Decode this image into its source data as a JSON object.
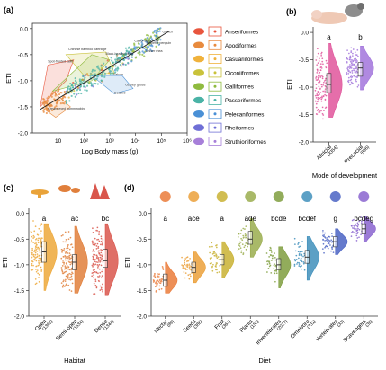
{
  "panels": {
    "a": "(a)",
    "b": "(b)",
    "c": "(c)",
    "d": "(d)"
  },
  "chart_data": [
    {
      "id": "a",
      "type": "scatter",
      "xlabel": "Log Body mass (g)",
      "ylabel": "ETI",
      "xscale": "log",
      "xlim": [
        1,
        1000000
      ],
      "ylim": [
        -2.0,
        0.1
      ],
      "xticks": [
        "10",
        "10²",
        "10³",
        "10⁴",
        "10⁵",
        "10⁶"
      ],
      "yticks": [
        "0.0",
        "-0.5",
        "-1.0",
        "-1.5",
        "-2.0"
      ],
      "legend_position": "right",
      "legend": [
        {
          "name": "Anseriformes",
          "color": "#e8553d"
        },
        {
          "name": "Apodiformes",
          "color": "#e88a3d"
        },
        {
          "name": "Casuariiformes",
          "color": "#f0b23c"
        },
        {
          "name": "Ciconiiformes",
          "color": "#c9c23a"
        },
        {
          "name": "Galliformes",
          "color": "#8fbb3f"
        },
        {
          "name": "Passeriformes",
          "color": "#4ab3a6"
        },
        {
          "name": "Pelecaniformes",
          "color": "#4a90d6"
        },
        {
          "name": "Rheiformes",
          "color": "#6f6fd6"
        },
        {
          "name": "Struthioniformes",
          "color": "#a77fd9"
        }
      ],
      "annotations": [
        {
          "text": "Black-headed duck",
          "x": 700,
          "y": -0.5
        },
        {
          "text": "California condor",
          "x": 9000,
          "y": -0.25
        },
        {
          "text": "Emperor penguin",
          "x": 26000,
          "y": -0.3
        },
        {
          "text": "Lesser rhea",
          "x": 24000,
          "y": -0.45
        },
        {
          "text": "Ostrich",
          "x": 110000,
          "y": -0.08
        },
        {
          "text": "Chinese bamboo partridge",
          "x": 25,
          "y": -0.42
        },
        {
          "text": "Spot-fronted swift",
          "x": 4,
          "y": -0.65
        },
        {
          "text": "Cream-eyed hummingbird",
          "x": 4,
          "y": -1.55
        },
        {
          "text": "Falcon",
          "x": 1400,
          "y": -0.9
        },
        {
          "text": "Osprey goose",
          "x": 4000,
          "y": -1.1
        },
        {
          "text": "Seabird",
          "x": 1500,
          "y": -1.25
        }
      ],
      "trend": [
        [
          2,
          -1.55
        ],
        [
          200000,
          -0.05
        ]
      ]
    },
    {
      "id": "b",
      "type": "raincloud",
      "xlabel": "Mode of development",
      "ylabel": "ETI",
      "ylim": [
        -2.0,
        0.1
      ],
      "yticks": [
        "0.0",
        "-0.5",
        "-1.0",
        "-1.5",
        "-2.0"
      ],
      "categories": [
        {
          "name": "Altricial",
          "n": "(3354)",
          "median": -0.95,
          "q1": -1.1,
          "q3": -0.75,
          "min": -1.55,
          "max": -0.2,
          "color": "#e0559b",
          "letter": "a"
        },
        {
          "name": "Precocial",
          "n": "(896)",
          "median": -0.65,
          "q1": -0.8,
          "q3": -0.55,
          "min": -1.05,
          "max": -0.25,
          "color": "#a274dc",
          "letter": "b"
        }
      ]
    },
    {
      "id": "c",
      "type": "raincloud",
      "xlabel": "Habitat",
      "ylabel": "ETI",
      "ylim": [
        -2.0,
        0.1
      ],
      "yticks": [
        "0.0",
        "-0.5",
        "-1.0",
        "-1.5",
        "-2.0"
      ],
      "categories": [
        {
          "name": "Open",
          "n": "(1362)",
          "median": -0.75,
          "q1": -0.95,
          "q3": -0.55,
          "min": -1.5,
          "max": -0.2,
          "color": "#eda83a",
          "letter": "a"
        },
        {
          "name": "Semi-open",
          "n": "(1534)",
          "median": -0.95,
          "q1": -1.1,
          "q3": -0.8,
          "min": -1.55,
          "max": -0.25,
          "color": "#e07f3b",
          "letter": "ac"
        },
        {
          "name": "Dense",
          "n": "(1344)",
          "median": -0.92,
          "q1": -1.05,
          "q3": -0.7,
          "min": -1.6,
          "max": -0.2,
          "color": "#d9564c",
          "letter": "bc"
        }
      ]
    },
    {
      "id": "d",
      "type": "raincloud",
      "xlabel": "Diet",
      "ylabel": "ETI",
      "ylim": [
        -2.0,
        0.1
      ],
      "yticks": [
        "0.0",
        "-0.5",
        "-1.0",
        "-1.5",
        "-2.0"
      ],
      "categories": [
        {
          "name": "Nectar",
          "n": "(89)",
          "median": -1.3,
          "q1": -1.42,
          "q3": -1.18,
          "min": -1.55,
          "max": -0.95,
          "color": "#ea7b3a",
          "letter": "a"
        },
        {
          "name": "Seeds",
          "n": "(386)",
          "median": -1.05,
          "q1": -1.15,
          "q3": -0.95,
          "min": -1.35,
          "max": -0.75,
          "color": "#eba03a",
          "letter": "ace"
        },
        {
          "name": "Fruit",
          "n": "(361)",
          "median": -0.9,
          "q1": -1.0,
          "q3": -0.8,
          "min": -1.25,
          "max": -0.55,
          "color": "#c9b132",
          "letter": "a"
        },
        {
          "name": "Plants",
          "n": "(158)",
          "median": -0.5,
          "q1": -0.6,
          "q3": -0.35,
          "min": -0.85,
          "max": -0.1,
          "color": "#9aad4d",
          "letter": "ade"
        },
        {
          "name": "Invertebrates",
          "n": "(2027)",
          "median": -1.0,
          "q1": -1.1,
          "q3": -0.88,
          "min": -1.45,
          "max": -0.65,
          "color": "#7f9e3e",
          "letter": "bcde"
        },
        {
          "name": "Omnivore",
          "n": "(731)",
          "median": -0.85,
          "q1": -0.97,
          "q3": -0.72,
          "min": -1.3,
          "max": -0.45,
          "color": "#3f8fbb",
          "letter": "bcdef"
        },
        {
          "name": "Vertebrates",
          "n": "(33)",
          "median": -0.55,
          "q1": -0.65,
          "q3": -0.45,
          "min": -0.8,
          "max": -0.3,
          "color": "#4a63c3",
          "letter": "g"
        },
        {
          "name": "Scavengers",
          "n": "(39)",
          "median": -0.3,
          "q1": -0.4,
          "q3": -0.2,
          "min": -0.55,
          "max": -0.05,
          "color": "#8a64cf",
          "letter": "bcdeg"
        }
      ]
    }
  ]
}
